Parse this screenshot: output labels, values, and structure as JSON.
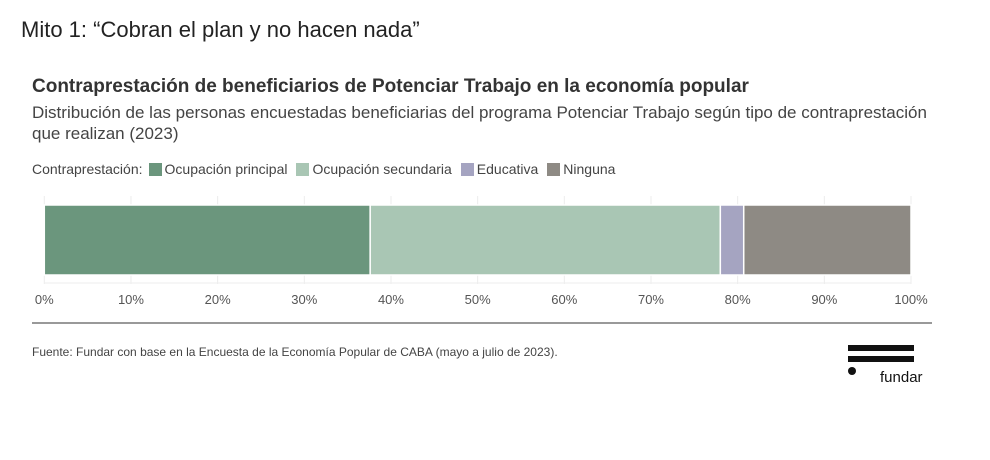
{
  "heading": "Mito 1: “Cobran el plan y no hacen nada”",
  "chart_data": {
    "type": "bar",
    "orientation": "horizontal-stacked",
    "title": "Contraprestación de beneficiarios de Potenciar Trabajo en la economía popular",
    "subtitle": "Distribución de las personas encuestadas beneficiarias del programa Potenciar Trabajo según tipo de contraprestación que realizan (2023)",
    "legend_label": "Contraprestación:",
    "series": [
      {
        "name": "Ocupación principal",
        "value": 37.6,
        "color": "#6b967d"
      },
      {
        "name": "Ocupación secundaria",
        "value": 40.4,
        "color": "#a9c6b4"
      },
      {
        "name": "Educativa",
        "value": 2.7,
        "color": "#a5a4c1"
      },
      {
        "name": "Ninguna",
        "value": 19.3,
        "color": "#8e8a84"
      }
    ],
    "xlim": [
      0,
      100
    ],
    "xticks": [
      "0%",
      "10%",
      "20%",
      "30%",
      "40%",
      "50%",
      "60%",
      "70%",
      "80%",
      "90%",
      "100%"
    ]
  },
  "source": "Fuente: Fundar con base en la Encuesta de la Economía Popular de CABA (mayo a julio de 2023).",
  "logo_text": "fundar"
}
